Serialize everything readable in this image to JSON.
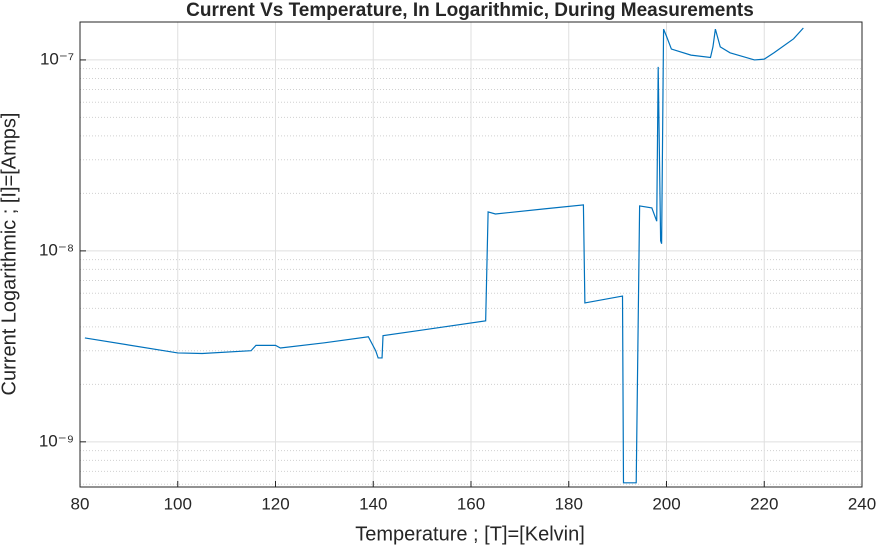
{
  "chart_data": {
    "type": "line",
    "title": "Current Vs Temperature, In Logarithmic, During Measurements",
    "x_label": "Temperature ; [T]=[Kelvin]",
    "y_label": "Current Logarithmic ; [I]=[Amps]",
    "y_scale": "log",
    "grid": true,
    "minor_grid": true,
    "xlim": [
      80,
      240
    ],
    "xticks": [
      80,
      100,
      120,
      140,
      160,
      180,
      200,
      220,
      240
    ],
    "ylim": [
      5.8e-10,
      1.58e-07
    ],
    "yticks": [
      {
        "value": 1e-09,
        "label": "10⁻⁹"
      },
      {
        "value": 1e-08,
        "label": "10⁻⁸"
      },
      {
        "value": 1e-07,
        "label": "10⁻⁷"
      }
    ],
    "yminorticks": [
      6e-10,
      7e-10,
      8e-10,
      9e-10,
      2e-09,
      3e-09,
      4e-09,
      5e-09,
      6e-09,
      7e-09,
      8e-09,
      9e-09,
      2e-08,
      3e-08,
      4e-08,
      5e-08,
      6e-08,
      7e-08,
      8e-08,
      9e-08
    ],
    "series": [
      {
        "color": "#0072bd",
        "x": [
          81,
          100,
          105,
          115,
          116,
          120,
          121,
          130,
          139,
          140.5,
          141,
          141.8,
          142,
          150,
          163,
          163.5,
          165,
          175,
          183,
          183.3,
          191,
          191.2,
          193.8,
          194.5,
          197,
          198,
          198.3,
          198.8,
          199,
          199.4,
          200,
          201,
          205,
          209,
          209.5,
          210,
          211,
          213,
          218,
          220,
          222,
          226,
          228
        ],
        "values": [
          3.5e-09,
          2.92e-09,
          2.9e-09,
          3e-09,
          3.2e-09,
          3.2e-09,
          3.1e-09,
          3.3e-09,
          3.55e-09,
          3e-09,
          2.75e-09,
          2.75e-09,
          3.6e-09,
          3.85e-09,
          4.3e-09,
          1.6e-08,
          1.56e-08,
          1.66e-08,
          1.74e-08,
          5.34e-09,
          5.8e-09,
          6.1e-10,
          6.1e-10,
          1.72e-08,
          1.68e-08,
          1.43e-08,
          9.2e-08,
          1.13e-08,
          1.09e-08,
          1.45e-07,
          1.33e-07,
          1.14e-07,
          1.06e-07,
          1.03e-07,
          1.17e-07,
          1.45e-07,
          1.17e-07,
          1.09e-07,
          1e-07,
          1.01e-07,
          1.09e-07,
          1.29e-07,
          1.47e-07
        ]
      }
    ]
  }
}
